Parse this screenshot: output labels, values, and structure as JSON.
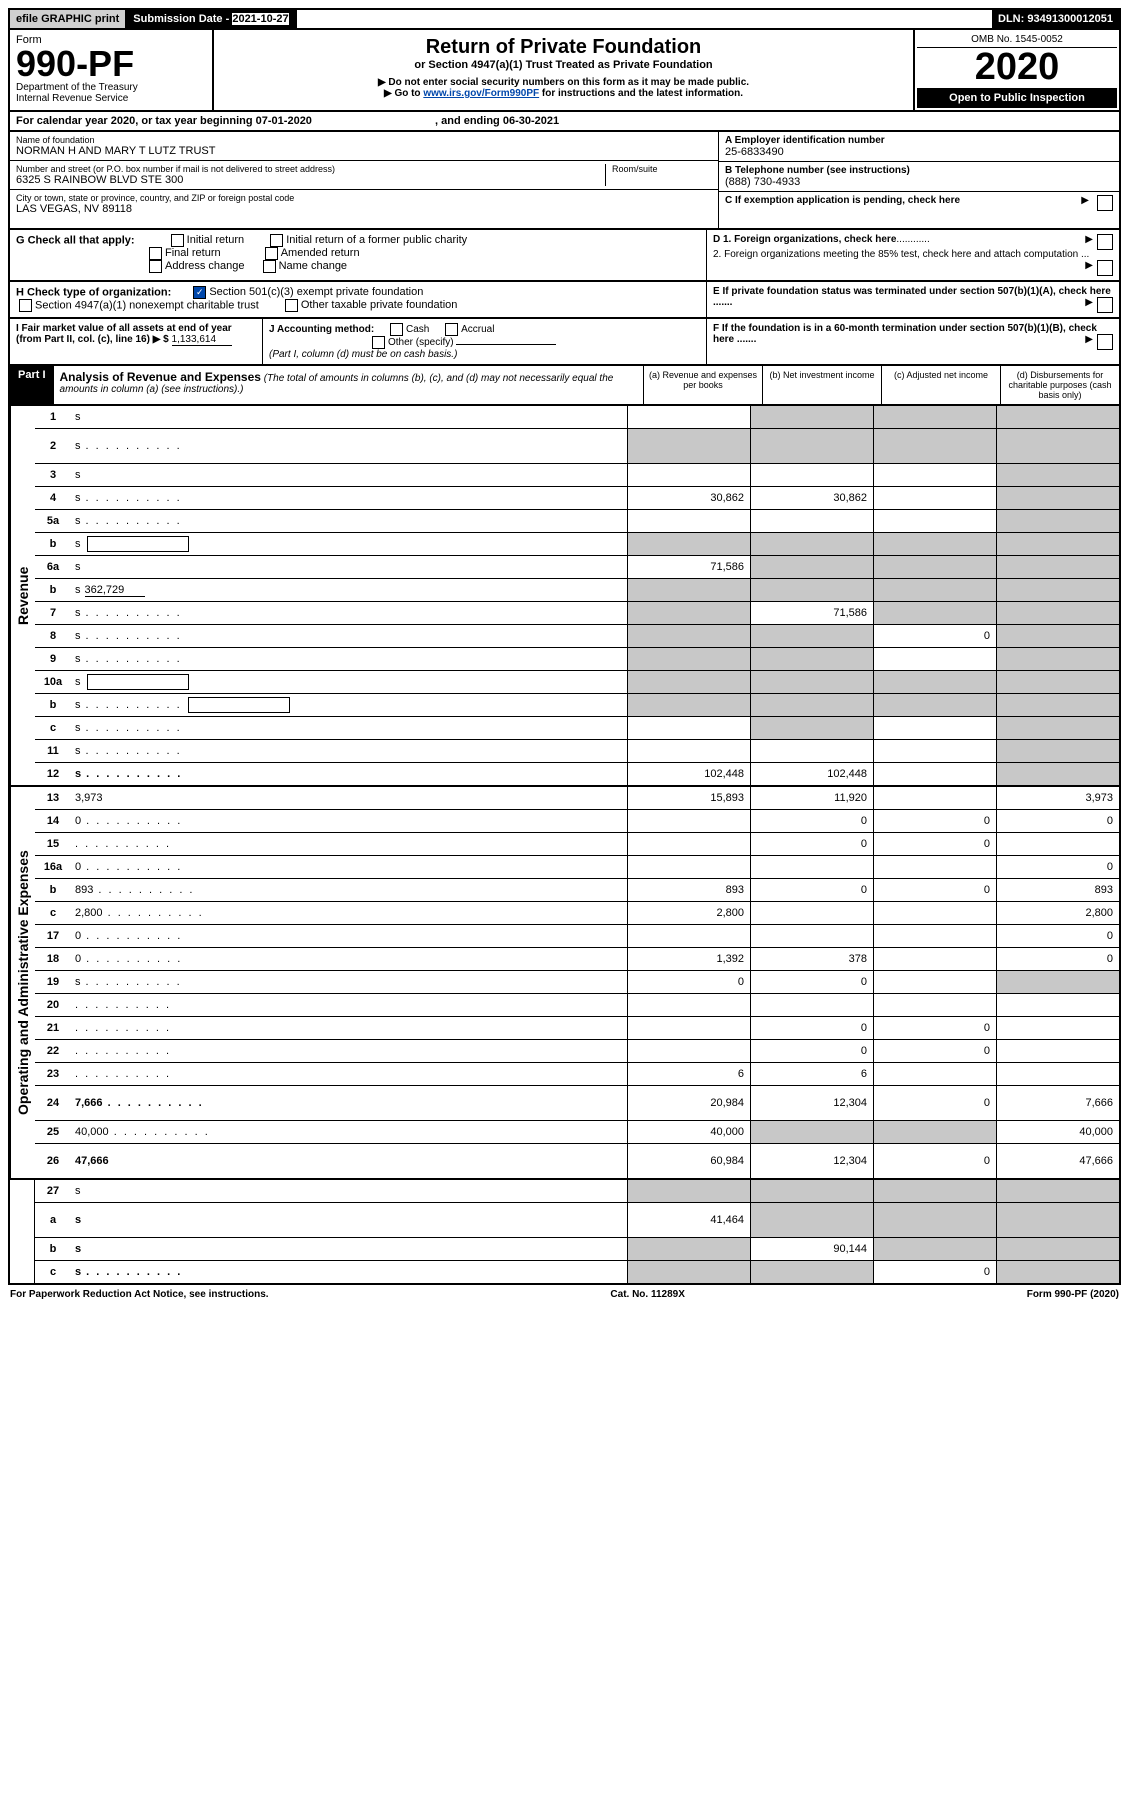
{
  "top_bar": {
    "efile": "efile GRAPHIC print",
    "sub_label": "Submission Date - ",
    "sub_date": "2021-10-27",
    "dln": "DLN: 93491300012051"
  },
  "header": {
    "form_label": "Form",
    "form_num": "990-PF",
    "dept1": "Department of the Treasury",
    "dept2": "Internal Revenue Service",
    "title": "Return of Private Foundation",
    "subtitle": "or Section 4947(a)(1) Trust Treated as Private Foundation",
    "note1": "▶ Do not enter social security numbers on this form as it may be made public.",
    "note2_pre": "▶ Go to ",
    "note2_link": "www.irs.gov/Form990PF",
    "note2_post": " for instructions and the latest information.",
    "omb": "OMB No. 1545-0052",
    "year": "2020",
    "open": "Open to Public Inspection"
  },
  "cal_year": {
    "pre": "For calendar year 2020, or tax year beginning ",
    "begin": "07-01-2020",
    "mid": " , and ending ",
    "end": "06-30-2021"
  },
  "info": {
    "name_label": "Name of foundation",
    "name": "NORMAN H AND MARY T LUTZ TRUST",
    "addr_label": "Number and street (or P.O. box number if mail is not delivered to street address)",
    "addr": "6325 S RAINBOW BLVD STE 300",
    "room_label": "Room/suite",
    "city_label": "City or town, state or province, country, and ZIP or foreign postal code",
    "city": "LAS VEGAS, NV  89118",
    "a_label": "A Employer identification number",
    "a_val": "25-6833490",
    "b_label": "B Telephone number (see instructions)",
    "b_val": "(888) 730-4933",
    "c_label": "C If exemption application is pending, check here"
  },
  "g": {
    "label": "G Check all that apply:",
    "opts": [
      "Initial return",
      "Initial return of a former public charity",
      "Final return",
      "Amended return",
      "Address change",
      "Name change"
    ]
  },
  "d": {
    "d1": "D 1. Foreign organizations, check here",
    "d2": "2. Foreign organizations meeting the 85% test, check here and attach computation ...",
    "e": "E  If private foundation status was terminated under section 507(b)(1)(A), check here .......",
    "f": "F  If the foundation is in a 60-month termination under section 507(b)(1)(B), check here ......."
  },
  "h": {
    "label": "H Check type of organization:",
    "opt1": "Section 501(c)(3) exempt private foundation",
    "opt2": "Section 4947(a)(1) nonexempt charitable trust",
    "opt3": "Other taxable private foundation"
  },
  "i": {
    "label": "I Fair market value of all assets at end of year (from Part II, col. (c), line 16) ▶ $",
    "val": "1,133,614"
  },
  "j": {
    "label": "J Accounting method:",
    "cash": "Cash",
    "accrual": "Accrual",
    "other": "Other (specify)",
    "note": "(Part I, column (d) must be on cash basis.)"
  },
  "part1": {
    "label": "Part I",
    "title": "Analysis of Revenue and Expenses",
    "note": " (The total of amounts in columns (b), (c), and (d) may not necessarily equal the amounts in column (a) (see instructions).)",
    "cols": {
      "a": "(a) Revenue and expenses per books",
      "b": "(b) Net investment income",
      "c": "(c) Adjusted net income",
      "d": "(d) Disbursements for charitable purposes (cash basis only)"
    }
  },
  "side": {
    "rev": "Revenue",
    "ops": "Operating and Administrative Expenses"
  },
  "rows_rev": [
    {
      "n": "1",
      "d": "s",
      "a": "",
      "b": "s",
      "c": "s"
    },
    {
      "n": "2",
      "d": "s",
      "dots": true,
      "a": "s",
      "b": "s",
      "c": "s",
      "tall": true
    },
    {
      "n": "3",
      "d": "s",
      "a": "",
      "b": "",
      "c": ""
    },
    {
      "n": "4",
      "d": "s",
      "dots": true,
      "a": "30,862",
      "b": "30,862",
      "c": ""
    },
    {
      "n": "5a",
      "d": "s",
      "dots": true,
      "a": "",
      "b": "",
      "c": ""
    },
    {
      "n": "b",
      "d": "s",
      "box": true,
      "a": "s",
      "b": "s",
      "c": "s"
    },
    {
      "n": "6a",
      "d": "s",
      "a": "71,586",
      "b": "s",
      "c": "s"
    },
    {
      "n": "b",
      "d": "s",
      "uval": "362,729",
      "a": "s",
      "b": "s",
      "c": "s"
    },
    {
      "n": "7",
      "d": "s",
      "dots": true,
      "a": "s",
      "b": "71,586",
      "c": "s"
    },
    {
      "n": "8",
      "d": "s",
      "dots": true,
      "a": "s",
      "b": "s",
      "c": "0"
    },
    {
      "n": "9",
      "d": "s",
      "dots": true,
      "a": "s",
      "b": "s",
      "c": ""
    },
    {
      "n": "10a",
      "d": "s",
      "box": true,
      "a": "s",
      "b": "s",
      "c": "s"
    },
    {
      "n": "b",
      "d": "s",
      "dots": true,
      "box": true,
      "a": "s",
      "b": "s",
      "c": "s"
    },
    {
      "n": "c",
      "d": "s",
      "dots": true,
      "a": "",
      "b": "s",
      "c": ""
    },
    {
      "n": "11",
      "d": "s",
      "dots": true,
      "a": "",
      "b": "",
      "c": ""
    },
    {
      "n": "12",
      "d": "s",
      "dots": true,
      "bold": true,
      "a": "102,448",
      "b": "102,448",
      "c": ""
    }
  ],
  "rows_ops": [
    {
      "n": "13",
      "d": "3,973",
      "a": "15,893",
      "b": "11,920",
      "c": ""
    },
    {
      "n": "14",
      "d": "0",
      "dots": true,
      "a": "",
      "b": "0",
      "c": "0"
    },
    {
      "n": "15",
      "d": "",
      "dots": true,
      "a": "",
      "b": "0",
      "c": "0"
    },
    {
      "n": "16a",
      "d": "0",
      "dots": true,
      "a": "",
      "b": "",
      "c": ""
    },
    {
      "n": "b",
      "d": "893",
      "dots": true,
      "a": "893",
      "b": "0",
      "c": "0"
    },
    {
      "n": "c",
      "d": "2,800",
      "dots": true,
      "a": "2,800",
      "b": "",
      "c": ""
    },
    {
      "n": "17",
      "d": "0",
      "dots": true,
      "a": "",
      "b": "",
      "c": ""
    },
    {
      "n": "18",
      "d": "0",
      "dots": true,
      "a": "1,392",
      "b": "378",
      "c": ""
    },
    {
      "n": "19",
      "d": "s",
      "dots": true,
      "a": "0",
      "b": "0",
      "c": ""
    },
    {
      "n": "20",
      "d": "",
      "dots": true,
      "a": "",
      "b": "",
      "c": ""
    },
    {
      "n": "21",
      "d": "",
      "dots": true,
      "a": "",
      "b": "0",
      "c": "0"
    },
    {
      "n": "22",
      "d": "",
      "dots": true,
      "a": "",
      "b": "0",
      "c": "0"
    },
    {
      "n": "23",
      "d": "",
      "dots": true,
      "a": "6",
      "b": "6",
      "c": ""
    },
    {
      "n": "24",
      "d": "7,666",
      "dots": true,
      "bold": true,
      "a": "20,984",
      "b": "12,304",
      "c": "0",
      "tall": true
    },
    {
      "n": "25",
      "d": "40,000",
      "dots": true,
      "a": "40,000",
      "b": "s",
      "c": "s"
    },
    {
      "n": "26",
      "d": "47,666",
      "bold": true,
      "a": "60,984",
      "b": "12,304",
      "c": "0",
      "tall": true
    }
  ],
  "rows_bottom": [
    {
      "n": "27",
      "d": "s",
      "a": "s",
      "b": "s",
      "c": "s"
    },
    {
      "n": "a",
      "d": "s",
      "bold": true,
      "a": "41,464",
      "b": "s",
      "c": "s",
      "tall": true
    },
    {
      "n": "b",
      "d": "s",
      "bold": true,
      "a": "s",
      "b": "90,144",
      "c": "s"
    },
    {
      "n": "c",
      "d": "s",
      "dots": true,
      "bold": true,
      "a": "s",
      "b": "s",
      "c": "0"
    }
  ],
  "footer": {
    "left": "For Paperwork Reduction Act Notice, see instructions.",
    "mid": "Cat. No. 11289X",
    "right": "Form 990-PF (2020)"
  },
  "colors": {
    "shaded": "#c8c8c8",
    "link": "#0047ab",
    "check": "#0047ab"
  }
}
